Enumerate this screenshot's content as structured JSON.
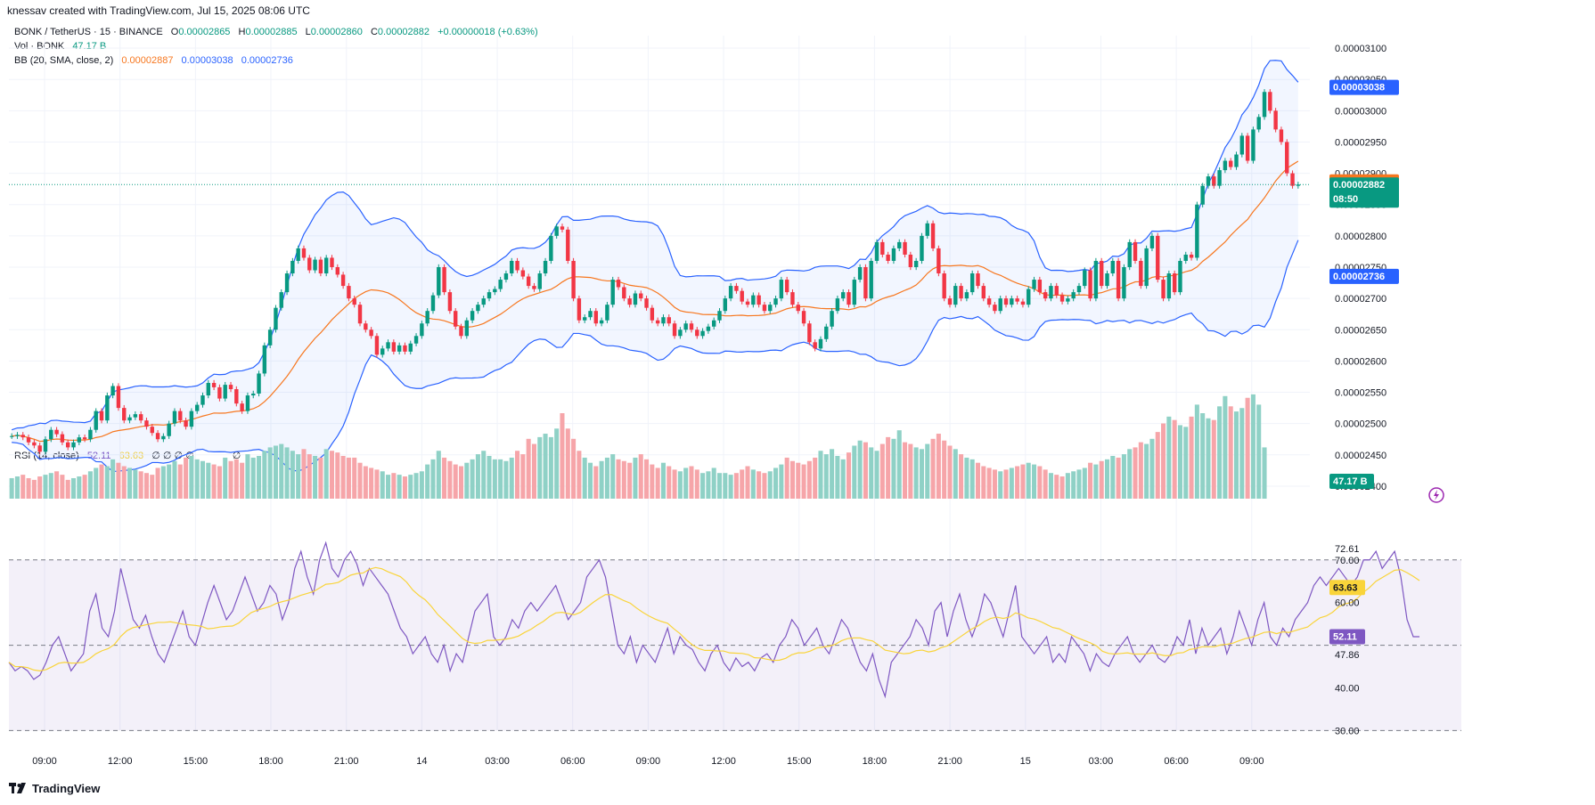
{
  "header": {
    "attribution": "knessav created with TradingView.com, Jul 15, 2025 08:06 UTC"
  },
  "legend": {
    "symbol": "BONK / TetherUS · 15 · BINANCE",
    "open_label": "O",
    "open": "0.00002865",
    "high_label": "H",
    "high": "0.00002885",
    "low_label": "L",
    "low": "0.00002860",
    "close_label": "C",
    "close": "0.00002882",
    "change": "+0.00000018 (+0.63%)",
    "vol_label": "Vol · BONK",
    "vol_value": "47.17 B",
    "bb_label": "BB (20, SMA, close, 2)",
    "bb_basis": "0.00002887",
    "bb_upper": "0.00003038",
    "bb_lower": "0.00002736",
    "rsi_label": "RSI (14, close)",
    "rsi_value": "52.11",
    "rsi_ma": "63.63",
    "rsi_extra": "∅ ∅ ∅ ∅",
    "rsi_extra2": "∅"
  },
  "footer": {
    "brand": "TradingView"
  },
  "colors": {
    "up": "#089981",
    "down": "#f23645",
    "up_vol": "#8fd1c6",
    "down_vol": "#f6a5a9",
    "bb_band": "#2962ff",
    "bb_basis": "#f7771f",
    "rsi_line": "#7e57c2",
    "rsi_ma": "#f9d43a"
  },
  "chart_data": [
    {
      "type": "candlestick",
      "title": "BONK / TetherUS · 15 · BINANCE",
      "x_ticks": [
        "09:00",
        "12:00",
        "15:00",
        "18:00",
        "21:00",
        "14",
        "03:00",
        "06:00",
        "09:00",
        "12:00",
        "15:00",
        "18:00",
        "21:00",
        "15",
        "03:00",
        "06:00",
        "09:00"
      ],
      "y_ticks": [
        "0.00003100",
        "0.00003050",
        "0.00003000",
        "0.00002950",
        "0.00002900",
        "0.00002850",
        "0.00002800",
        "0.00002750",
        "0.00002700",
        "0.00002650",
        "0.00002600",
        "0.00002550",
        "0.00002500",
        "0.00002450",
        "0.00002400"
      ],
      "ylim": [
        2.38e-05,
        3.12e-05
      ],
      "closes": [
        2.48e-05,
        2.482e-05,
        2.478e-05,
        2.47e-05,
        2.465e-05,
        2.455e-05,
        2.475e-05,
        2.49e-05,
        2.483e-05,
        2.47e-05,
        2.462e-05,
        2.47e-05,
        2.478e-05,
        2.475e-05,
        2.49e-05,
        2.52e-05,
        2.505e-05,
        2.545e-05,
        2.56e-05,
        2.525e-05,
        2.505e-05,
        2.51e-05,
        2.515e-05,
        2.505e-05,
        2.495e-05,
        2.485e-05,
        2.475e-05,
        2.48e-05,
        2.5e-05,
        2.52e-05,
        2.505e-05,
        2.495e-05,
        2.52e-05,
        2.53e-05,
        2.545e-05,
        2.565e-05,
        2.558e-05,
        2.54e-05,
        2.562e-05,
        2.555e-05,
        2.532e-05,
        2.52e-05,
        2.545e-05,
        2.548e-05,
        2.58e-05,
        2.625e-05,
        2.65e-05,
        2.685e-05,
        2.71e-05,
        2.74e-05,
        2.76e-05,
        2.78e-05,
        2.765e-05,
        2.745e-05,
        2.762e-05,
        2.74e-05,
        2.765e-05,
        2.75e-05,
        2.738e-05,
        2.72e-05,
        2.7e-05,
        2.69e-05,
        2.66e-05,
        2.65e-05,
        2.64e-05,
        2.61e-05,
        2.62e-05,
        2.63e-05,
        2.615e-05,
        2.625e-05,
        2.615e-05,
        2.628e-05,
        2.64e-05,
        2.66e-05,
        2.68e-05,
        2.705e-05,
        2.75e-05,
        2.71e-05,
        2.68e-05,
        2.655e-05,
        2.64e-05,
        2.665e-05,
        2.68e-05,
        2.69e-05,
        2.7e-05,
        2.71e-05,
        2.715e-05,
        2.73e-05,
        2.74e-05,
        2.76e-05,
        2.745e-05,
        2.735e-05,
        2.72e-05,
        2.715e-05,
        2.74e-05,
        2.76e-05,
        2.8e-05,
        2.815e-05,
        2.81e-05,
        2.76e-05,
        2.7e-05,
        2.665e-05,
        2.67e-05,
        2.68e-05,
        2.66e-05,
        2.665e-05,
        2.69e-05,
        2.73e-05,
        2.718e-05,
        2.7e-05,
        2.69e-05,
        2.708e-05,
        2.7e-05,
        2.685e-05,
        2.665e-05,
        2.66e-05,
        2.67e-05,
        2.66e-05,
        2.64e-05,
        2.65e-05,
        2.66e-05,
        2.65e-05,
        2.64e-05,
        2.648e-05,
        2.655e-05,
        2.665e-05,
        2.68e-05,
        2.7e-05,
        2.72e-05,
        2.712e-05,
        2.695e-05,
        2.69e-05,
        2.705e-05,
        2.69e-05,
        2.68e-05,
        2.69e-05,
        2.7e-05,
        2.73e-05,
        2.71e-05,
        2.69e-05,
        2.68e-05,
        2.66e-05,
        2.63e-05,
        2.62e-05,
        2.635e-05,
        2.655e-05,
        2.68e-05,
        2.7e-05,
        2.71e-05,
        2.69e-05,
        2.73e-05,
        2.75e-05,
        2.7e-05,
        2.76e-05,
        2.79e-05,
        2.77e-05,
        2.76e-05,
        2.78e-05,
        2.79e-05,
        2.77e-05,
        2.75e-05,
        2.76e-05,
        2.8e-05,
        2.82e-05,
        2.78e-05,
        2.74e-05,
        2.7e-05,
        2.69e-05,
        2.72e-05,
        2.7e-05,
        2.71e-05,
        2.74e-05,
        2.72e-05,
        2.7e-05,
        2.69e-05,
        2.68e-05,
        2.7e-05,
        2.69e-05,
        2.7e-05,
        2.695e-05,
        2.69e-05,
        2.715e-05,
        2.73e-05,
        2.71e-05,
        2.7e-05,
        2.72e-05,
        2.705e-05,
        2.695e-05,
        2.7e-05,
        2.71e-05,
        2.72e-05,
        2.745e-05,
        2.7e-05,
        2.76e-05,
        2.72e-05,
        2.74e-05,
        2.76e-05,
        2.7e-05,
        2.75e-05,
        2.79e-05,
        2.76e-05,
        2.72e-05,
        2.78e-05,
        2.8e-05,
        2.73e-05,
        2.7e-05,
        2.74e-05,
        2.71e-05,
        2.76e-05,
        2.77e-05,
        2.765e-05,
        2.85e-05,
        2.88e-05,
        2.895e-05,
        2.88e-05,
        2.905e-05,
        2.92e-05,
        2.91e-05,
        2.93e-05,
        2.96e-05,
        2.92e-05,
        2.97e-05,
        2.99e-05,
        3.03e-05,
        3e-05,
        2.97e-05,
        2.95e-05,
        2.9e-05,
        2.88e-05,
        2.882e-05
      ],
      "bb_upper_end": 3.038e-05,
      "bb_basis_end": 2.887e-05,
      "bb_lower_end": 2.736e-05,
      "last_price": "0.00002882",
      "countdown": "08:50"
    },
    {
      "type": "bar",
      "title": "Vol · BONK",
      "last_value": "47.17 B",
      "values": [
        24,
        26,
        28,
        24,
        22,
        26,
        28,
        30,
        32,
        28,
        22,
        24,
        26,
        28,
        32,
        36,
        40,
        38,
        46,
        42,
        38,
        36,
        34,
        32,
        30,
        28,
        36,
        38,
        40,
        44,
        40,
        48,
        50,
        46,
        44,
        42,
        40,
        38,
        48,
        44,
        46,
        42,
        52,
        48,
        50,
        56,
        60,
        62,
        64,
        60,
        56,
        52,
        58,
        52,
        50,
        48,
        58,
        56,
        54,
        50,
        48,
        48,
        42,
        38,
        36,
        34,
        32,
        28,
        30,
        28,
        26,
        28,
        30,
        32,
        40,
        46,
        56,
        48,
        44,
        40,
        38,
        42,
        46,
        52,
        56,
        50,
        46,
        46,
        44,
        48,
        56,
        52,
        70,
        64,
        72,
        76,
        72,
        82,
        100,
        82,
        70,
        56,
        48,
        42,
        38,
        44,
        48,
        52,
        46,
        44,
        42,
        48,
        52,
        46,
        40,
        36,
        42,
        38,
        34,
        32,
        36,
        38,
        34,
        30,
        32,
        36,
        30,
        30,
        28,
        30,
        34,
        38,
        34,
        32,
        30,
        32,
        36,
        40,
        48,
        44,
        42,
        40,
        44,
        48,
        56,
        52,
        58,
        50,
        46,
        54,
        62,
        68,
        66,
        60,
        56,
        64,
        72,
        70,
        80,
        66,
        64,
        60,
        58,
        64,
        70,
        76,
        68,
        62,
        58,
        52,
        48,
        46,
        42,
        38,
        36,
        34,
        32,
        34,
        36,
        38,
        40,
        42,
        40,
        38,
        34,
        30,
        28,
        26,
        30,
        32,
        34,
        36,
        42,
        40,
        44,
        46,
        50,
        48,
        52,
        58,
        60,
        66,
        64,
        70,
        78,
        88,
        96,
        92,
        86,
        84,
        96,
        110,
        100,
        94,
        92,
        108,
        120,
        108,
        102,
        106,
        118,
        122,
        110,
        60
      ],
      "vol_ylim": [
        0,
        125
      ]
    },
    {
      "type": "line",
      "title": "RSI (14, close)",
      "y_ticks": [
        "72.61",
        "70.00",
        "60.00",
        "52.11",
        "47.86",
        "40.00",
        "30.00"
      ],
      "ylim": [
        28,
        76
      ],
      "levels": [
        70,
        50,
        30
      ],
      "rsi": [
        46,
        44,
        45,
        44,
        42,
        43,
        46,
        50,
        52,
        48,
        44,
        46,
        48,
        58,
        62,
        54,
        52,
        58,
        68,
        62,
        56,
        54,
        57,
        52,
        48,
        46,
        50,
        54,
        58,
        52,
        50,
        55,
        60,
        64,
        60,
        56,
        58,
        62,
        66,
        62,
        58,
        60,
        64,
        62,
        56,
        60,
        68,
        72,
        66,
        62,
        70,
        74,
        68,
        66,
        70,
        72,
        69,
        64,
        68,
        66,
        64,
        62,
        58,
        54,
        52,
        48,
        50,
        52,
        48,
        46,
        50,
        44,
        48,
        46,
        52,
        58,
        60,
        62,
        52,
        50,
        52,
        56,
        54,
        58,
        60,
        58,
        60,
        62,
        64,
        60,
        56,
        58,
        60,
        66,
        68,
        70,
        66,
        58,
        50,
        48,
        52,
        46,
        50,
        48,
        46,
        50,
        54,
        48,
        52,
        50,
        49,
        46,
        44,
        48,
        50,
        46,
        44,
        47,
        45,
        46,
        44,
        47,
        48,
        46,
        50,
        52,
        56,
        54,
        50,
        52,
        54,
        50,
        48,
        52,
        56,
        54,
        50,
        46,
        44,
        48,
        42,
        38,
        46,
        48,
        50,
        52,
        56,
        54,
        50,
        58,
        60,
        52,
        58,
        62,
        56,
        52,
        56,
        62,
        60,
        56,
        52,
        58,
        64,
        52,
        50,
        48,
        50,
        52,
        46,
        48,
        46,
        52,
        50,
        48,
        44,
        48,
        46,
        45,
        48,
        50,
        52,
        48,
        46,
        48,
        50,
        47,
        46,
        48,
        52,
        50,
        56,
        48,
        54,
        50,
        52,
        54,
        48,
        52,
        58,
        54,
        50,
        56,
        60,
        52,
        50,
        54,
        52,
        56,
        58,
        60,
        64,
        66,
        64,
        66,
        68,
        66,
        64,
        66,
        70,
        70,
        72,
        68,
        70,
        72,
        66,
        56,
        52,
        52
      ],
      "rsi_ma_end": 63.63,
      "rsi_last": 52.11
    }
  ]
}
